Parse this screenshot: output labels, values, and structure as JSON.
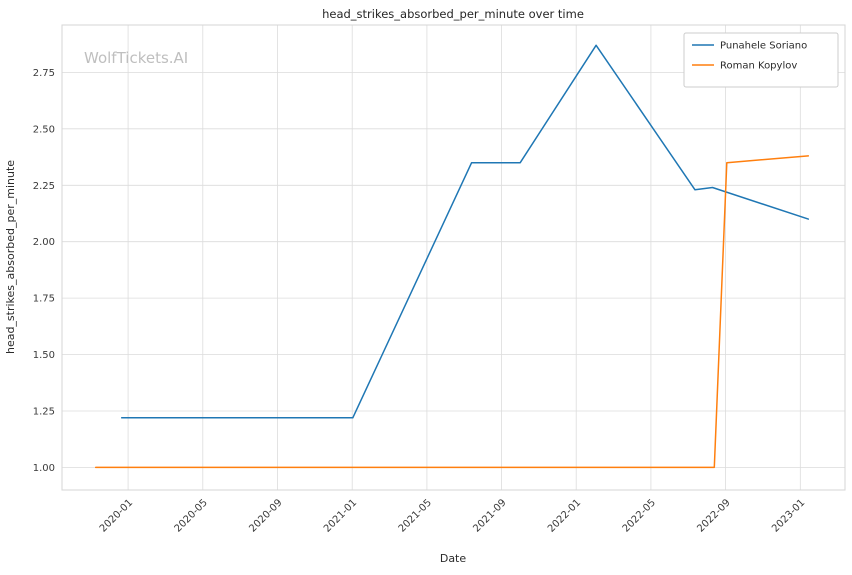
{
  "watermark": "WolfTickets.AI",
  "chart_data": {
    "type": "line",
    "title": "head_strikes_absorbed_per_minute over time",
    "xlabel": "Date",
    "ylabel": "head_strikes_absorbed_per_minute",
    "x_ticks": [
      "2020-01",
      "2020-05",
      "2020-09",
      "2021-01",
      "2021-05",
      "2021-09",
      "2022-01",
      "2022-05",
      "2022-09",
      "2023-01"
    ],
    "y_ticks": [
      "1.00",
      "1.25",
      "1.50",
      "1.75",
      "2.00",
      "2.25",
      "2.50",
      "2.75"
    ],
    "xlim": [
      "2019-09-15",
      "2023-03-13"
    ],
    "ylim": [
      0.9,
      2.96
    ],
    "grid": true,
    "legend_position": "upper right",
    "series": [
      {
        "name": "Punahele Soriano",
        "color": "#1f77b4",
        "points": [
          [
            "2019-12-21",
            1.22
          ],
          [
            "2021-01-02",
            1.22
          ],
          [
            "2021-07-13",
            2.35
          ],
          [
            "2021-10-01",
            2.35
          ],
          [
            "2022-02-03",
            2.87
          ],
          [
            "2022-07-12",
            2.23
          ],
          [
            "2022-08-10",
            2.24
          ],
          [
            "2023-01-14",
            2.1
          ]
        ]
      },
      {
        "name": "Roman Kopylov",
        "color": "#ff7f0e",
        "points": [
          [
            "2019-11-09",
            1.0
          ],
          [
            "2022-08-13",
            1.0
          ],
          [
            "2022-09-03",
            2.35
          ],
          [
            "2023-01-14",
            2.38
          ]
        ]
      }
    ]
  }
}
